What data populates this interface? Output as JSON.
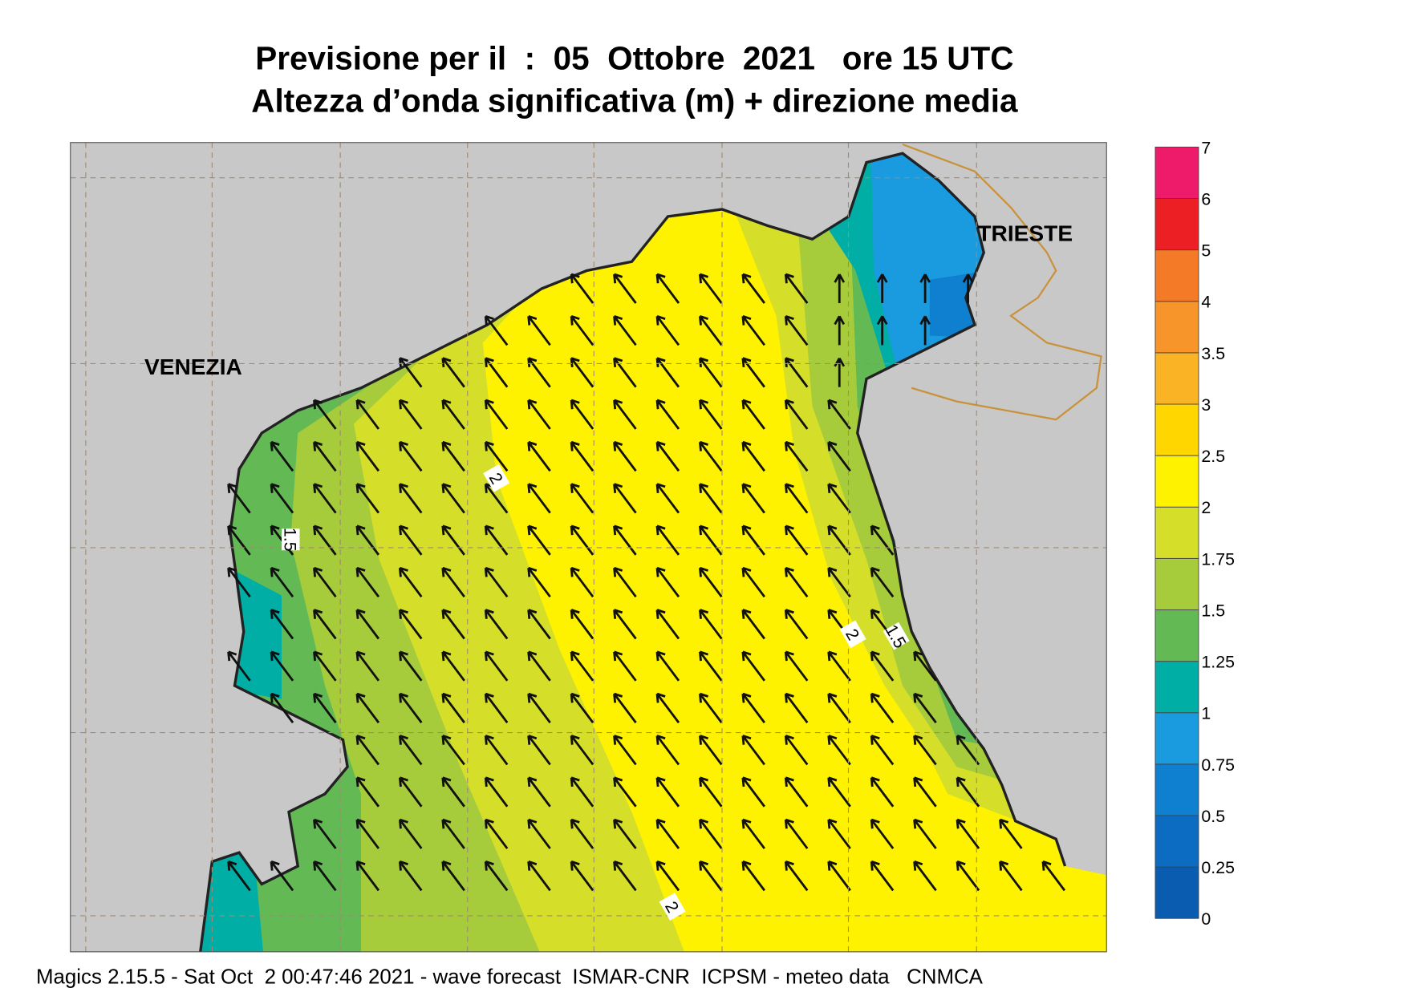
{
  "title": {
    "line1": "Previsione per il  :  05  Ottobre  2021   ore 15 UTC",
    "line2": "Altezza d’onda significativa (m) + direzione media"
  },
  "map": {
    "places": [
      "VENEZIA",
      "TRIESTE"
    ],
    "contour_labels": [
      2,
      1.5,
      2,
      1.5,
      2
    ]
  },
  "colorbar": {
    "levels": [
      0,
      0.25,
      0.5,
      0.75,
      1,
      1.25,
      1.5,
      1.75,
      2,
      2.5,
      3,
      3.5,
      4,
      5,
      6,
      7
    ],
    "colors": [
      "#0a5cb0",
      "#0b6cc2",
      "#0f7fd0",
      "#1a9be0",
      "#00aea6",
      "#63ba55",
      "#a6cb3b",
      "#d5df2a",
      "#fff200",
      "#ffd600",
      "#fbb326",
      "#f7942a",
      "#f47a28",
      "#ec2024",
      "#ee1a6a"
    ]
  },
  "footer": "Magics 2.15.5 - Sat Oct  2 00:47:46 2021 - wave forecast  ISMAR-CNR  ICPSM - meteo data   CNMCA"
}
